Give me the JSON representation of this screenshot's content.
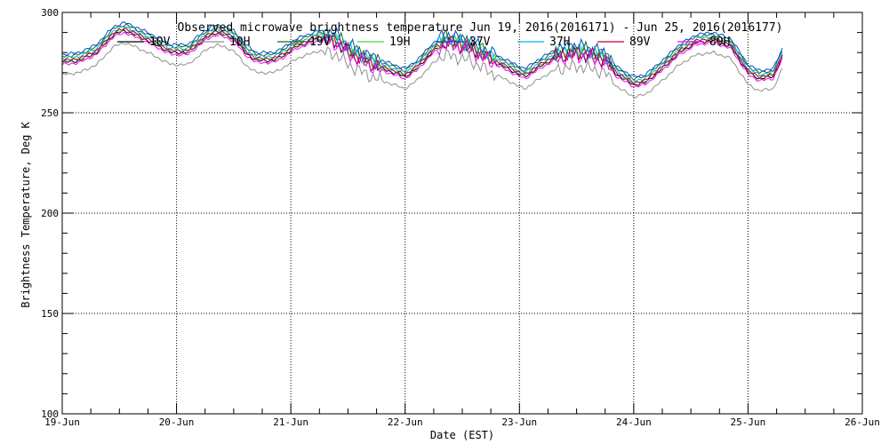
{
  "chart_data": {
    "type": "line",
    "title": "Observed microwave brightness temperature Jun 19, 2016(2016171) - Jun 25, 2016(2016177)",
    "xlabel": "Date (EST)",
    "ylabel": "Brightness Temperature, Deg K",
    "ylim": [
      100,
      300
    ],
    "yticks": [
      "100",
      "150",
      "200",
      "250",
      "300"
    ],
    "xlim": [
      "2016-06-19",
      "2016-06-26"
    ],
    "xticks": [
      "19-Jun",
      "20-Jun",
      "21-Jun",
      "22-Jun",
      "23-Jun",
      "24-Jun",
      "25-Jun",
      "26-Jun"
    ],
    "grid": true,
    "legend_position": "top",
    "base_curve": {
      "x": [
        0.0,
        0.15,
        0.3,
        0.45,
        0.55,
        0.75,
        0.95,
        1.1,
        1.25,
        1.35,
        1.5,
        1.6,
        1.7,
        1.85,
        1.95,
        2.05,
        2.25,
        2.4,
        2.5,
        2.7,
        2.85,
        3.0,
        3.1,
        3.25,
        3.35,
        3.5,
        3.6,
        3.75,
        3.9,
        4.0,
        4.05,
        4.15,
        4.3,
        4.45,
        4.55,
        4.75,
        4.85,
        5.0,
        5.1,
        5.25,
        5.4,
        5.55,
        5.7,
        5.85,
        6.0,
        6.1,
        6.22,
        6.3
      ],
      "y": [
        275,
        276,
        280,
        289,
        291,
        286,
        280,
        280,
        287,
        290,
        287,
        280,
        276,
        276,
        279,
        283,
        287,
        285,
        280,
        274,
        271,
        268,
        272,
        281,
        285,
        283,
        281,
        276,
        272,
        269,
        268,
        272,
        277,
        279,
        279,
        276,
        269,
        264,
        265,
        272,
        280,
        285,
        286,
        283,
        270,
        267,
        268,
        278
      ]
    },
    "series": [
      {
        "name": "10V",
        "color": "#000000",
        "offset": 0
      },
      {
        "name": "10H",
        "color": "#909090",
        "offset": -6
      },
      {
        "name": "19V",
        "color": "#1a6b1a",
        "offset": 3
      },
      {
        "name": "19H",
        "color": "#4ad24a",
        "offset": 1
      },
      {
        "name": "37V",
        "color": "#0050c8",
        "offset": 4
      },
      {
        "name": "37H",
        "color": "#00b4e6",
        "offset": 2
      },
      {
        "name": "89V",
        "color": "#c8002a",
        "offset": 1
      },
      {
        "name": "89H",
        "color": "#ff00ff",
        "offset": -1
      }
    ]
  }
}
